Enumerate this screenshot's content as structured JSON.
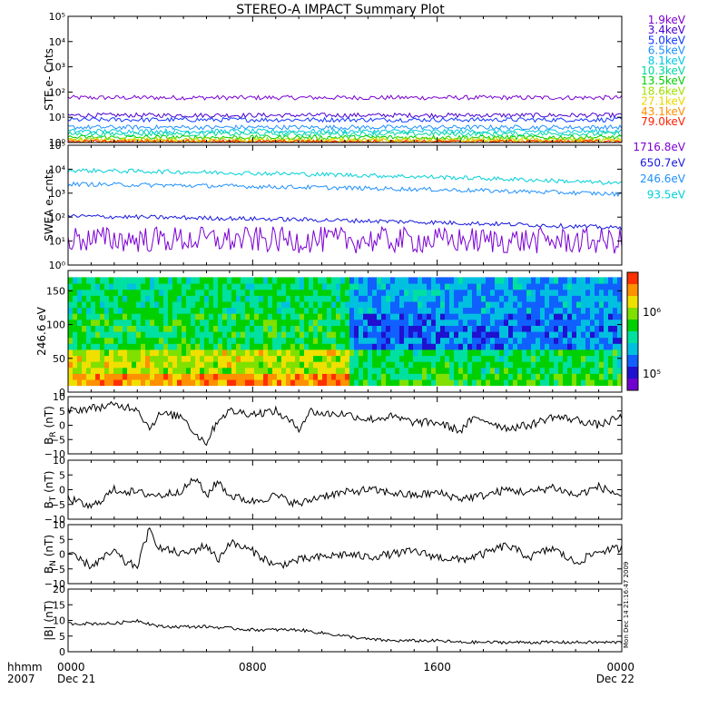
{
  "title": "STEREO-A IMPACT Summary Plot",
  "timestamp": "Mon Dec 14 21:16:47 2009",
  "x_axis": {
    "corner": [
      "hhmm",
      "2007"
    ],
    "ticks": [
      {
        "time": "0000",
        "date": "Dec 21",
        "hour": 0
      },
      {
        "time": "0800",
        "date": "",
        "hour": 8
      },
      {
        "time": "1600",
        "date": "",
        "hour": 16
      },
      {
        "time": "0000",
        "date": "Dec 22",
        "hour": 24
      }
    ],
    "range_hours": [
      0,
      24
    ]
  },
  "colorbar": {
    "label_hi": "10⁶",
    "label_lo": "10⁵",
    "colors": [
      "#ff3000",
      "#ff9000",
      "#f0e000",
      "#80e000",
      "#00d000",
      "#00e0a0",
      "#00c0e0",
      "#1060ff",
      "#2010d0",
      "#7000d0"
    ]
  },
  "chart_data": [
    {
      "type": "line",
      "panel": "STE",
      "ylabel": "STE e- Cnts",
      "yscale": "log",
      "ylim": [
        1,
        100000
      ],
      "ytick_labels": [
        "10⁰",
        "10¹",
        "10²",
        "10³",
        "10⁴",
        "10⁵"
      ],
      "series": [
        {
          "name": "1.9keV",
          "color": "#7b00d4",
          "level": 60
        },
        {
          "name": "3.4keV",
          "color": "#4a00d0",
          "level": 12
        },
        {
          "name": "5.0keV",
          "color": "#1038ff",
          "level": 8
        },
        {
          "name": "6.5keV",
          "color": "#1e90ff",
          "level": 4
        },
        {
          "name": "8.1keV",
          "color": "#00c8e0",
          "level": 2.8
        },
        {
          "name": "10.3keV",
          "color": "#00d8a0",
          "level": 2.2
        },
        {
          "name": "13.5keV",
          "color": "#00d000",
          "level": 1.6
        },
        {
          "name": "18.6keV",
          "color": "#a0e000",
          "level": 1.3
        },
        {
          "name": "27.1keV",
          "color": "#e8d800",
          "level": 1.15
        },
        {
          "name": "43.1keV",
          "color": "#ff9000",
          "level": 1.08
        },
        {
          "name": "79.0keV",
          "color": "#ff2000",
          "level": 1.04
        }
      ]
    },
    {
      "type": "line",
      "panel": "SWEA",
      "ylabel": "SWEA e- cnts",
      "yscale": "log",
      "ylim": [
        1,
        100000
      ],
      "ytick_labels": [
        "10⁰",
        "10¹",
        "10²",
        "10³",
        "10⁴",
        "10⁵"
      ],
      "series": [
        {
          "name": "1716.8eV",
          "color": "#7b00d4",
          "level_start": 12,
          "level_end": 10
        },
        {
          "name": "650.7eV",
          "color": "#1818e0",
          "level_start": 110,
          "level_end": 35
        },
        {
          "name": "246.6eV",
          "color": "#1e90ff",
          "level_start": 2400,
          "level_end": 900
        },
        {
          "name": "93.5eV",
          "color": "#00d0d8",
          "level_start": 9000,
          "level_end": 2500
        }
      ]
    },
    {
      "type": "heatmap",
      "panel": "PAD",
      "ylabel": "246.6 eV",
      "ylim": [
        0,
        180
      ],
      "ytick_labels": [
        "0",
        "50",
        "100",
        "150"
      ],
      "yticks": [
        0,
        50,
        100,
        150
      ]
    },
    {
      "type": "line",
      "panel": "BR",
      "ylabel": "B",
      "ylabel_sub": "R",
      "ylabel_unit": " (nT)",
      "ylim": [
        -10,
        10
      ],
      "ytick_labels": [
        "−10",
        "−5",
        "0",
        "5",
        "10"
      ],
      "yticks": [
        -10,
        -5,
        0,
        5,
        10
      ],
      "series": [
        {
          "name": "",
          "color": "#000000",
          "hours": [
            0,
            1,
            2,
            3,
            3.5,
            4,
            5,
            5.5,
            6,
            6.5,
            7,
            8,
            9,
            10,
            10.5,
            11,
            12,
            13,
            14,
            15,
            16,
            17,
            17.5,
            18,
            19,
            20,
            21,
            22,
            23,
            24
          ],
          "values": [
            5,
            6,
            7,
            6,
            -1,
            4,
            3,
            -3,
            -6,
            2,
            5,
            4,
            5,
            -1,
            5,
            4,
            4,
            2,
            3,
            1,
            1,
            -2,
            2,
            2,
            -1,
            0,
            3,
            2,
            0,
            3
          ]
        }
      ]
    },
    {
      "type": "line",
      "panel": "BT",
      "ylabel": "B",
      "ylabel_sub": "T",
      "ylabel_unit": " (nT)",
      "ylim": [
        -10,
        10
      ],
      "ytick_labels": [
        "−10",
        "−5",
        "0",
        "5",
        "10"
      ],
      "yticks": [
        -10,
        -5,
        0,
        5,
        10
      ],
      "series": [
        {
          "name": "",
          "color": "#000000",
          "hours": [
            0,
            1,
            2,
            3,
            4,
            5,
            5.5,
            6,
            6.5,
            7,
            8,
            9,
            10,
            11,
            12,
            13,
            14,
            15,
            16,
            17,
            18,
            19,
            20,
            21,
            22,
            23,
            24
          ],
          "values": [
            -3,
            -6,
            0,
            -1,
            -2,
            0,
            4,
            -2,
            3,
            -2,
            -4,
            -2,
            -5,
            -2,
            -1,
            0,
            -1,
            -2,
            -1,
            -3,
            -2,
            0,
            -1,
            1,
            -2,
            1,
            -2
          ]
        }
      ]
    },
    {
      "type": "line",
      "panel": "BN",
      "ylabel": "B",
      "ylabel_sub": "N",
      "ylabel_unit": " (nT)",
      "ylim": [
        -10,
        10
      ],
      "ytick_labels": [
        "−10",
        "−5",
        "0",
        "5",
        "10"
      ],
      "yticks": [
        -10,
        -5,
        0,
        5,
        10
      ],
      "series": [
        {
          "name": "",
          "color": "#000000",
          "hours": [
            0,
            1,
            2,
            2.5,
            3,
            3.5,
            4,
            5,
            6,
            6.5,
            7,
            8,
            9,
            10,
            11,
            12,
            13,
            14,
            15,
            16,
            17,
            18,
            19,
            20,
            21,
            22,
            23,
            24
          ],
          "values": [
            0,
            -4,
            1,
            -3,
            -4,
            8,
            2,
            0,
            3,
            -2,
            4,
            1,
            -4,
            -2,
            -1,
            0,
            -1,
            0,
            1,
            -1,
            -2,
            0,
            3,
            -1,
            2,
            -3,
            1,
            2
          ]
        }
      ]
    },
    {
      "type": "line",
      "panel": "B",
      "ylabel": "|B| (nT)",
      "ylim": [
        0,
        20
      ],
      "ytick_labels": [
        "0",
        "5",
        "10",
        "15",
        "20"
      ],
      "yticks": [
        0,
        5,
        10,
        15,
        20
      ],
      "series": [
        {
          "name": "",
          "color": "#000000",
          "hours": [
            0,
            1,
            2,
            3,
            4,
            5,
            6,
            7,
            8,
            9,
            10,
            11,
            12,
            13,
            14,
            15,
            16,
            17,
            18,
            19,
            20,
            21,
            22,
            23,
            24
          ],
          "values": [
            9,
            9,
            9,
            10,
            8,
            8,
            8,
            7.5,
            7,
            7,
            7,
            6,
            5,
            4,
            3.5,
            3.5,
            3.5,
            3,
            3,
            3,
            3,
            3,
            3,
            3,
            3
          ]
        }
      ]
    }
  ]
}
